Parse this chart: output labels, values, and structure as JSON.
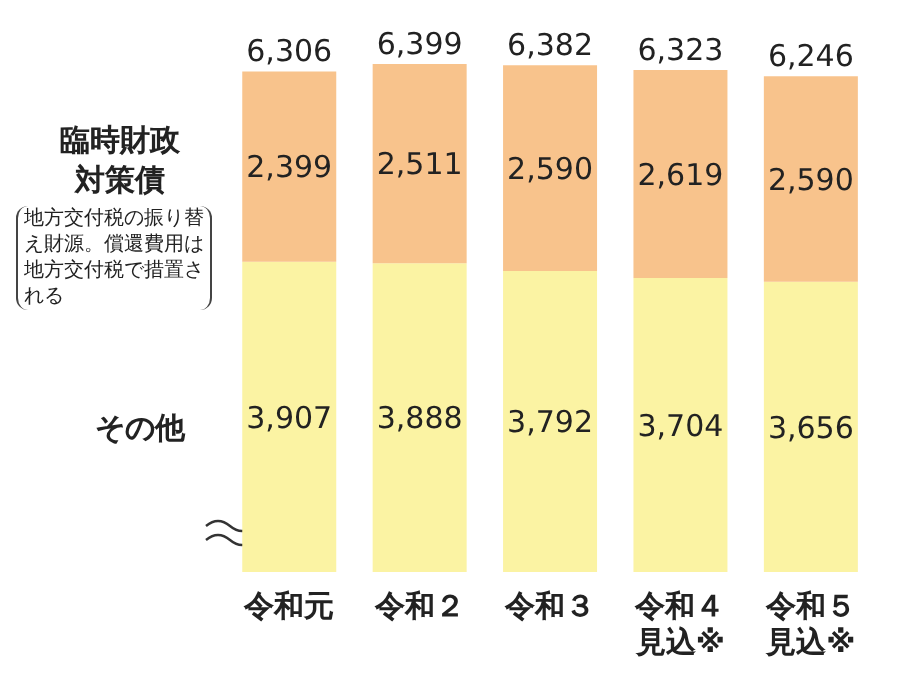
{
  "chart_data": {
    "type": "bar",
    "stacked": true,
    "categories": [
      "令和元",
      "令和２",
      "令和３",
      "令和４見込※",
      "令和５見込※"
    ],
    "series": [
      {
        "name": "その他",
        "color": "#fbf3a3",
        "values": [
          3907,
          3888,
          3792,
          3704,
          3656
        ],
        "value_labels": [
          "3,907",
          "3,888",
          "3,792",
          "3,704",
          "3,656"
        ]
      },
      {
        "name": "臨時財政対策債",
        "color": "#f8c38c",
        "values": [
          2399,
          2511,
          2590,
          2619,
          2590
        ],
        "value_labels": [
          "2,399",
          "2,511",
          "2,590",
          "2,619",
          "2,590"
        ]
      }
    ],
    "totals": [
      "6,306",
      "6,399",
      "6,382",
      "6,323",
      "6,246"
    ],
    "annotations": [
      "地方交付税の振り替え財源。償還費用は地方交付税で措置される"
    ]
  }
}
